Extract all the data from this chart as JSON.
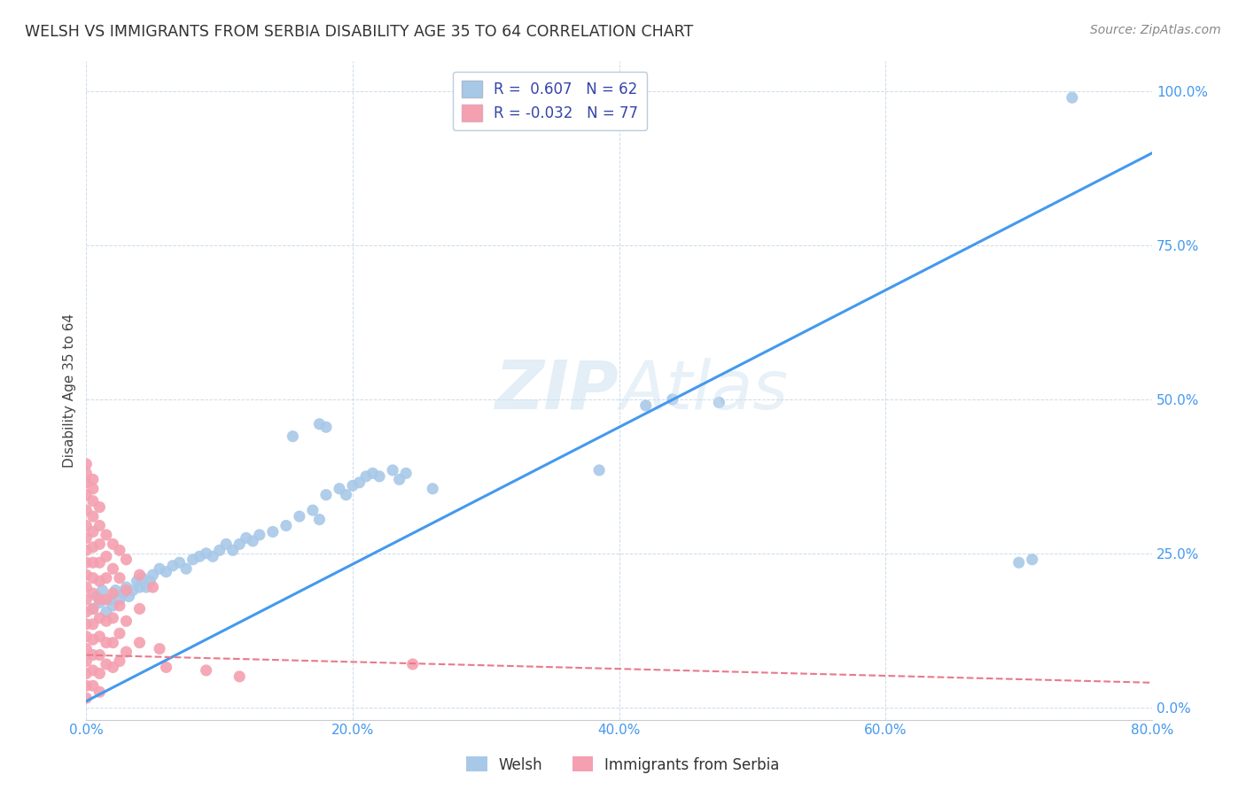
{
  "title": "WELSH VS IMMIGRANTS FROM SERBIA DISABILITY AGE 35 TO 64 CORRELATION CHART",
  "source": "Source: ZipAtlas.com",
  "ylabel": "Disability Age 35 to 64",
  "xlim": [
    0.0,
    0.8
  ],
  "ylim": [
    -0.02,
    1.05
  ],
  "background_color": "#ffffff",
  "watermark": "ZIPAtlas",
  "welsh_R": 0.607,
  "welsh_N": 62,
  "serbia_R": -0.032,
  "serbia_N": 77,
  "welsh_color": "#a8c8e8",
  "serbia_color": "#f4a0b0",
  "welsh_line_color": "#4499ee",
  "serbia_line_color": "#e87a8a",
  "welsh_line_x": [
    0.0,
    0.8
  ],
  "welsh_line_y": [
    0.01,
    0.9
  ],
  "serbia_line_x": [
    0.0,
    0.8
  ],
  "serbia_line_y": [
    0.085,
    0.04
  ],
  "welsh_scatter": [
    [
      0.005,
      0.16
    ],
    [
      0.008,
      0.18
    ],
    [
      0.01,
      0.17
    ],
    [
      0.012,
      0.19
    ],
    [
      0.015,
      0.155
    ],
    [
      0.018,
      0.175
    ],
    [
      0.02,
      0.165
    ],
    [
      0.022,
      0.19
    ],
    [
      0.025,
      0.175
    ],
    [
      0.028,
      0.185
    ],
    [
      0.03,
      0.195
    ],
    [
      0.032,
      0.18
    ],
    [
      0.035,
      0.19
    ],
    [
      0.038,
      0.205
    ],
    [
      0.04,
      0.195
    ],
    [
      0.042,
      0.21
    ],
    [
      0.045,
      0.195
    ],
    [
      0.048,
      0.205
    ],
    [
      0.05,
      0.215
    ],
    [
      0.055,
      0.225
    ],
    [
      0.06,
      0.22
    ],
    [
      0.065,
      0.23
    ],
    [
      0.07,
      0.235
    ],
    [
      0.075,
      0.225
    ],
    [
      0.08,
      0.24
    ],
    [
      0.085,
      0.245
    ],
    [
      0.09,
      0.25
    ],
    [
      0.095,
      0.245
    ],
    [
      0.1,
      0.255
    ],
    [
      0.105,
      0.265
    ],
    [
      0.11,
      0.255
    ],
    [
      0.115,
      0.265
    ],
    [
      0.12,
      0.275
    ],
    [
      0.125,
      0.27
    ],
    [
      0.13,
      0.28
    ],
    [
      0.14,
      0.285
    ],
    [
      0.15,
      0.295
    ],
    [
      0.16,
      0.31
    ],
    [
      0.17,
      0.32
    ],
    [
      0.175,
      0.305
    ],
    [
      0.18,
      0.345
    ],
    [
      0.19,
      0.355
    ],
    [
      0.195,
      0.345
    ],
    [
      0.2,
      0.36
    ],
    [
      0.205,
      0.365
    ],
    [
      0.21,
      0.375
    ],
    [
      0.215,
      0.38
    ],
    [
      0.22,
      0.375
    ],
    [
      0.23,
      0.385
    ],
    [
      0.235,
      0.37
    ],
    [
      0.24,
      0.38
    ],
    [
      0.26,
      0.355
    ],
    [
      0.155,
      0.44
    ],
    [
      0.175,
      0.46
    ],
    [
      0.18,
      0.455
    ],
    [
      0.42,
      0.49
    ],
    [
      0.44,
      0.5
    ],
    [
      0.385,
      0.385
    ],
    [
      0.7,
      0.235
    ],
    [
      0.71,
      0.24
    ],
    [
      0.74,
      0.99
    ],
    [
      0.475,
      0.495
    ]
  ],
  "serbia_scatter": [
    [
      0.0,
      0.32
    ],
    [
      0.0,
      0.295
    ],
    [
      0.0,
      0.275
    ],
    [
      0.0,
      0.255
    ],
    [
      0.0,
      0.235
    ],
    [
      0.0,
      0.215
    ],
    [
      0.0,
      0.195
    ],
    [
      0.0,
      0.175
    ],
    [
      0.0,
      0.155
    ],
    [
      0.0,
      0.135
    ],
    [
      0.0,
      0.115
    ],
    [
      0.0,
      0.095
    ],
    [
      0.0,
      0.075
    ],
    [
      0.0,
      0.055
    ],
    [
      0.0,
      0.035
    ],
    [
      0.0,
      0.015
    ],
    [
      0.0,
      0.345
    ],
    [
      0.0,
      0.365
    ],
    [
      0.0,
      0.38
    ],
    [
      0.0,
      0.395
    ],
    [
      0.005,
      0.31
    ],
    [
      0.005,
      0.285
    ],
    [
      0.005,
      0.26
    ],
    [
      0.005,
      0.235
    ],
    [
      0.005,
      0.21
    ],
    [
      0.005,
      0.185
    ],
    [
      0.005,
      0.16
    ],
    [
      0.005,
      0.135
    ],
    [
      0.005,
      0.11
    ],
    [
      0.005,
      0.085
    ],
    [
      0.005,
      0.06
    ],
    [
      0.005,
      0.035
    ],
    [
      0.005,
      0.335
    ],
    [
      0.005,
      0.355
    ],
    [
      0.005,
      0.37
    ],
    [
      0.01,
      0.295
    ],
    [
      0.01,
      0.265
    ],
    [
      0.01,
      0.235
    ],
    [
      0.01,
      0.205
    ],
    [
      0.01,
      0.175
    ],
    [
      0.01,
      0.145
    ],
    [
      0.01,
      0.115
    ],
    [
      0.01,
      0.085
    ],
    [
      0.01,
      0.055
    ],
    [
      0.01,
      0.025
    ],
    [
      0.01,
      0.325
    ],
    [
      0.015,
      0.28
    ],
    [
      0.015,
      0.245
    ],
    [
      0.015,
      0.21
    ],
    [
      0.015,
      0.175
    ],
    [
      0.015,
      0.14
    ],
    [
      0.015,
      0.105
    ],
    [
      0.015,
      0.07
    ],
    [
      0.02,
      0.265
    ],
    [
      0.02,
      0.225
    ],
    [
      0.02,
      0.185
    ],
    [
      0.02,
      0.145
    ],
    [
      0.02,
      0.105
    ],
    [
      0.02,
      0.065
    ],
    [
      0.025,
      0.255
    ],
    [
      0.025,
      0.21
    ],
    [
      0.025,
      0.165
    ],
    [
      0.025,
      0.12
    ],
    [
      0.025,
      0.075
    ],
    [
      0.03,
      0.24
    ],
    [
      0.03,
      0.19
    ],
    [
      0.03,
      0.14
    ],
    [
      0.03,
      0.09
    ],
    [
      0.04,
      0.215
    ],
    [
      0.04,
      0.16
    ],
    [
      0.04,
      0.105
    ],
    [
      0.05,
      0.195
    ],
    [
      0.055,
      0.095
    ],
    [
      0.06,
      0.065
    ],
    [
      0.09,
      0.06
    ],
    [
      0.115,
      0.05
    ],
    [
      0.245,
      0.07
    ]
  ],
  "x_ticks": [
    0.0,
    0.2,
    0.4,
    0.6,
    0.8
  ],
  "y_ticks": [
    0.0,
    0.25,
    0.5,
    0.75,
    1.0
  ]
}
